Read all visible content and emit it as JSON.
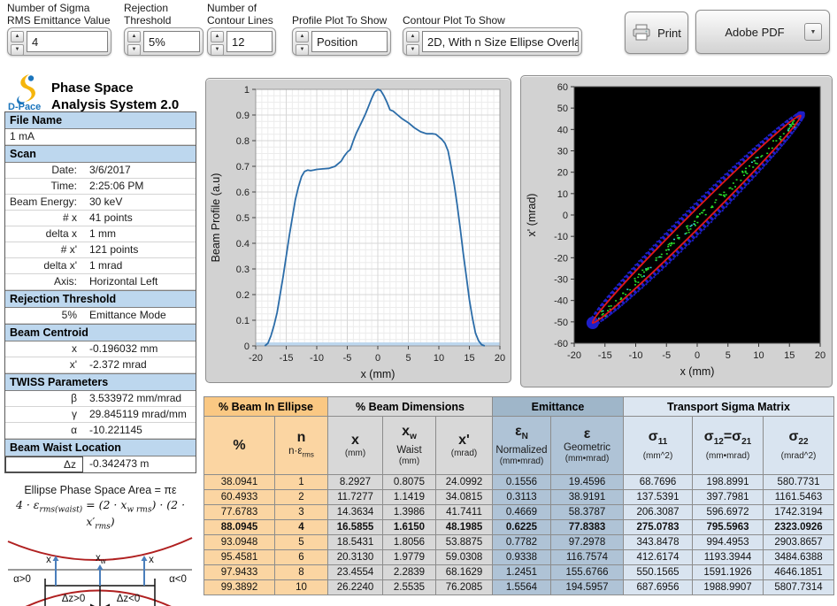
{
  "toolbar": {
    "controls": [
      {
        "label1": "Number of Sigma",
        "label2": "RMS Emittance Value",
        "value": "4"
      },
      {
        "label1": "Rejection",
        "label2": "Threshold",
        "value": "5%"
      },
      {
        "label1": "Number of",
        "label2": "Contour Lines",
        "value": "12"
      },
      {
        "label1": "",
        "label2": "Profile Plot To Show",
        "value": "Position"
      },
      {
        "label1": "",
        "label2": "Contour Plot To Show",
        "value": "2D, With n Size Ellipse Overlay"
      }
    ],
    "print_label": "Print",
    "adobe_label": "Adobe PDF"
  },
  "brand": {
    "line1": "Phase Space",
    "line2": "Analysis System 2.0",
    "logo_text": "D-Pace"
  },
  "sidebar": {
    "sections": [
      {
        "header": "File Name",
        "rows": [
          {
            "full": true,
            "value": "1 mA"
          }
        ]
      },
      {
        "header": "Scan",
        "rows": [
          {
            "label": "Date:",
            "value": "3/6/2017"
          },
          {
            "label": "Time:",
            "value": "2:25:06 PM"
          },
          {
            "label": "Beam Energy:",
            "value": "30 keV"
          },
          {
            "label": "# x",
            "value": "41 points"
          },
          {
            "label": "delta x",
            "value": "1 mm"
          },
          {
            "label": "# x'",
            "value": "121 points"
          },
          {
            "label": "delta x'",
            "value": "1 mrad"
          },
          {
            "label": "Axis:",
            "value": "Horizontal Left"
          }
        ]
      },
      {
        "header": "Rejection Threshold",
        "rows": [
          {
            "label": "5%",
            "value": "Emittance Mode"
          }
        ]
      },
      {
        "header": "Beam Centroid",
        "rows": [
          {
            "label": "x",
            "value": "-0.196032 mm"
          },
          {
            "label": "x'",
            "value": "-2.372 mrad"
          }
        ]
      },
      {
        "header": "TWISS Parameters",
        "rows": [
          {
            "label": "β",
            "value": "3.533972 mm/mrad"
          },
          {
            "label": "γ",
            "value": "29.845119 mrad/mm"
          },
          {
            "label": "α",
            "value": "-10.221145"
          }
        ]
      },
      {
        "header": "Beam Waist Location",
        "rows": [
          {
            "label": "Δz",
            "value": "-0.342473 m",
            "boxed": true
          }
        ]
      }
    ],
    "diagram": {
      "title": "Ellipse Phase Space Area = πε",
      "formula": {
        "p1": "4 · ε",
        "s1": "rms(waist)",
        "p2": " = (2 · x",
        "s2": "w rms",
        "p3": ") · (2 · x′",
        "s3": "rms",
        "p4": ")"
      },
      "labels": {
        "x_left": "x",
        "x_waist": "xw",
        "x_right": "x",
        "alpha_pos": "α>0",
        "alpha_neg": "α<0",
        "dz_pos": "Δz>0",
        "dz_neg": "Δz<0"
      }
    }
  },
  "chart_data": [
    {
      "type": "line",
      "title": "",
      "xlabel": "x (mm)",
      "ylabel": "Beam Profile (a.u)",
      "xlim": [
        -20,
        20
      ],
      "ylim": [
        0,
        1
      ],
      "xticks": [
        -20,
        -15,
        -10,
        -5,
        0,
        5,
        10,
        15,
        20
      ],
      "yticks": [
        0,
        0.1,
        0.2,
        0.3,
        0.4,
        0.5,
        0.6,
        0.7,
        0.8,
        0.9,
        1
      ],
      "grid": true,
      "line_color": "#2B6CA8",
      "x": [
        -18.5,
        -18,
        -17.5,
        -17,
        -16.5,
        -16,
        -15.5,
        -15,
        -14.5,
        -14,
        -13.5,
        -13,
        -12.5,
        -12,
        -11.5,
        -11,
        -10.5,
        -10,
        -9,
        -8,
        -7,
        -6,
        -5.5,
        -5,
        -4.5,
        -4,
        -3.5,
        -3,
        -2.5,
        -2,
        -1.5,
        -1,
        -0.5,
        0,
        0.5,
        1,
        1.5,
        2,
        2.5,
        3,
        4,
        5,
        6,
        7,
        8,
        9,
        9.5,
        10,
        10.5,
        11,
        11.5,
        12,
        12.5,
        13,
        13.5,
        14,
        14.5,
        15,
        15.5,
        16,
        16.5,
        17,
        17.5
      ],
      "y": [
        0,
        0.01,
        0.04,
        0.08,
        0.13,
        0.2,
        0.27,
        0.35,
        0.43,
        0.5,
        0.57,
        0.62,
        0.66,
        0.68,
        0.685,
        0.683,
        0.685,
        0.688,
        0.69,
        0.692,
        0.7,
        0.72,
        0.74,
        0.755,
        0.765,
        0.8,
        0.83,
        0.855,
        0.88,
        0.905,
        0.935,
        0.965,
        0.99,
        1.0,
        0.995,
        0.975,
        0.95,
        0.92,
        0.915,
        0.905,
        0.885,
        0.87,
        0.85,
        0.835,
        0.827,
        0.827,
        0.825,
        0.815,
        0.805,
        0.79,
        0.76,
        0.7,
        0.63,
        0.55,
        0.46,
        0.36,
        0.27,
        0.18,
        0.11,
        0.05,
        0.02,
        0.005,
        0
      ]
    },
    {
      "type": "contour",
      "title": "",
      "xlabel": "x (mm)",
      "ylabel": "x' (mrad)",
      "xlim": [
        -20,
        20
      ],
      "ylim": [
        -60,
        60
      ],
      "xticks": [
        -20,
        -15,
        -10,
        -5,
        0,
        5,
        10,
        15,
        20
      ],
      "yticks": [
        -60,
        -50,
        -40,
        -30,
        -20,
        -10,
        0,
        10,
        20,
        30,
        40,
        50,
        60
      ],
      "background": "#000000",
      "overlay_ellipse": {
        "x1": -17,
        "y1": -50.5,
        "x2": 16.8,
        "y2": 46.5,
        "color": "#E11818"
      },
      "contour_band_color": "#1E1EC8",
      "speckle_colors": [
        "#2ADF2A",
        "#30D8D8"
      ]
    }
  ],
  "table": {
    "groups": [
      {
        "label": "% Beam In Ellipse",
        "span": 2,
        "cls": "g-orange"
      },
      {
        "label": "% Beam Dimensions",
        "span": 3,
        "cls": "g-gray"
      },
      {
        "label": "Emittance",
        "span": 2,
        "cls": "g-blue"
      },
      {
        "label": "Transport Sigma Matrix",
        "span": 3,
        "cls": "g-pale"
      }
    ],
    "columns": [
      {
        "parts": [
          {
            "t": "%"
          }
        ],
        "line2": "",
        "unit": ""
      },
      {
        "parts": [
          {
            "t": "n"
          }
        ],
        "line2_parts": [
          {
            "t": "n·ε",
            "s": "rms"
          }
        ],
        "unit": ""
      },
      {
        "parts": [
          {
            "t": "x"
          }
        ],
        "line2": "",
        "unit": "(mm)"
      },
      {
        "parts": [
          {
            "t": "x",
            "s": "w"
          }
        ],
        "line2": "Waist",
        "unit": "(mm)"
      },
      {
        "parts": [
          {
            "t": "x'"
          }
        ],
        "line2": "",
        "unit": "(mrad)"
      },
      {
        "parts": [
          {
            "t": "ε",
            "s": "N"
          }
        ],
        "line2": "Normalized",
        "unit": "(mm•mrad)"
      },
      {
        "parts": [
          {
            "t": "ε"
          }
        ],
        "line2": "Geometric",
        "unit": "(mm•mrad)"
      },
      {
        "parts": [
          {
            "t": "σ",
            "s": "11"
          }
        ],
        "line2": "",
        "unit": "(mm^2)"
      },
      {
        "parts": [
          {
            "t": "σ",
            "s": "12"
          },
          {
            "t": "=σ",
            "s": "21"
          }
        ],
        "line2": "",
        "unit": "(mm•mrad)"
      },
      {
        "parts": [
          {
            "t": "σ",
            "s": "22"
          }
        ],
        "line2": "",
        "unit": "(mrad^2)"
      }
    ],
    "bold_row_index": 3,
    "rows": [
      [
        "38.0941",
        "1",
        "8.2927",
        "0.8075",
        "24.0992",
        "0.1556",
        "19.4596",
        "68.7696",
        "198.8991",
        "580.7731"
      ],
      [
        "60.4933",
        "2",
        "11.7277",
        "1.1419",
        "34.0815",
        "0.3113",
        "38.9191",
        "137.5391",
        "397.7981",
        "1161.5463"
      ],
      [
        "77.6783",
        "3",
        "14.3634",
        "1.3986",
        "41.7411",
        "0.4669",
        "58.3787",
        "206.3087",
        "596.6972",
        "1742.3194"
      ],
      [
        "88.0945",
        "4",
        "16.5855",
        "1.6150",
        "48.1985",
        "0.6225",
        "77.8383",
        "275.0783",
        "795.5963",
        "2323.0926"
      ],
      [
        "93.0948",
        "5",
        "18.5431",
        "1.8056",
        "53.8875",
        "0.7782",
        "97.2978",
        "343.8478",
        "994.4953",
        "2903.8657"
      ],
      [
        "95.4581",
        "6",
        "20.3130",
        "1.9779",
        "59.0308",
        "0.9338",
        "116.7574",
        "412.6174",
        "1193.3944",
        "3484.6388"
      ],
      [
        "97.9433",
        "8",
        "23.4554",
        "2.2839",
        "68.1629",
        "1.2451",
        "155.6766",
        "550.1565",
        "1591.1926",
        "4646.1851"
      ],
      [
        "99.3892",
        "10",
        "26.2240",
        "2.5535",
        "76.2085",
        "1.5564",
        "194.5957",
        "687.6956",
        "1988.9907",
        "5807.7314"
      ]
    ]
  }
}
